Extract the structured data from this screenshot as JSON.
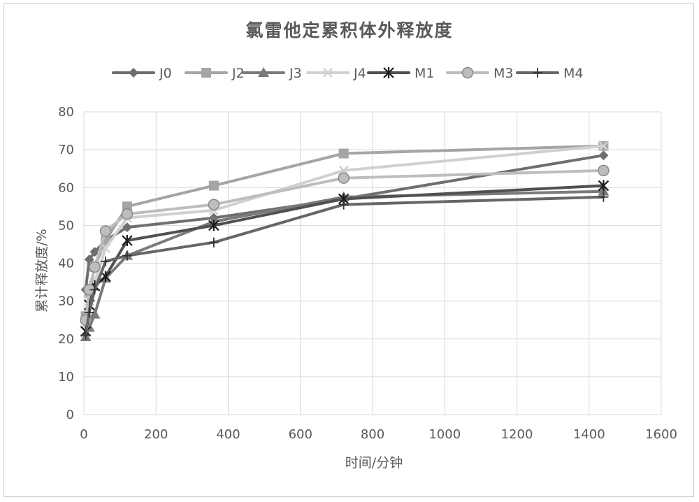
{
  "chart_data": {
    "type": "line",
    "title": "氯雷他定累积体外释放度",
    "xlabel": "时间/分钟",
    "ylabel": "累计释放度/%",
    "xlim": [
      0,
      1600
    ],
    "ylim": [
      0,
      80
    ],
    "x_ticks": [
      0,
      200,
      400,
      600,
      800,
      1000,
      1200,
      1400,
      1600
    ],
    "y_ticks": [
      0,
      10,
      20,
      30,
      40,
      50,
      60,
      70,
      80
    ],
    "grid": true,
    "legend_position": "top",
    "series": [
      {
        "name": "J0",
        "marker": "diamond",
        "color": "#6e6e6e",
        "x": [
          5,
          15,
          30,
          60,
          120,
          360,
          720,
          1440
        ],
        "y": [
          33,
          41,
          43,
          46,
          49.5,
          52,
          57,
          68.5
        ]
      },
      {
        "name": "J2",
        "marker": "square",
        "color": "#a5a5a5",
        "x": [
          5,
          15,
          30,
          60,
          120,
          360,
          720,
          1440
        ],
        "y": [
          26,
          32,
          39,
          46,
          55,
          60.5,
          69,
          71
        ]
      },
      {
        "name": "J3",
        "marker": "triangle",
        "color": "#7a7a7a",
        "x": [
          5,
          15,
          30,
          60,
          120,
          360,
          720,
          1440
        ],
        "y": [
          20.5,
          23,
          26.5,
          36,
          42,
          51,
          57.5,
          59
        ]
      },
      {
        "name": "J4",
        "marker": "x",
        "color": "#d0d0d0",
        "x": [
          5,
          15,
          30,
          60,
          120,
          360,
          720,
          1440
        ],
        "y": [
          24,
          30,
          35,
          44,
          52,
          54,
          64.5,
          71
        ]
      },
      {
        "name": "M1",
        "marker": "asterisk",
        "color": "#505050",
        "x": [
          5,
          15,
          30,
          60,
          120,
          360,
          720,
          1440
        ],
        "y": [
          22,
          29,
          34,
          36.5,
          46,
          50,
          57,
          60.5
        ]
      },
      {
        "name": "M3",
        "marker": "circle",
        "color": "#bdbdbd",
        "x": [
          5,
          15,
          30,
          60,
          120,
          360,
          720,
          1440
        ],
        "y": [
          25,
          33,
          39,
          48.5,
          53,
          55.5,
          62.5,
          64.5
        ]
      },
      {
        "name": "M4",
        "marker": "plus",
        "color": "#666666",
        "x": [
          5,
          15,
          30,
          60,
          120,
          360,
          720,
          1440
        ],
        "y": [
          21,
          27,
          33,
          40.5,
          42,
          45.5,
          55.5,
          57.5
        ]
      }
    ]
  }
}
